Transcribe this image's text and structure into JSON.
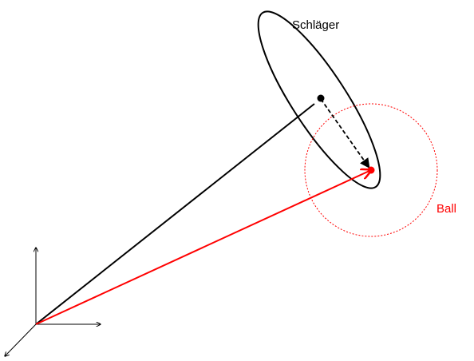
{
  "labels": {
    "racket": "Schläger",
    "ball": "Ball"
  },
  "colors": {
    "racket": "#000000",
    "ball": "#ff0000",
    "axes": "#000000"
  }
}
